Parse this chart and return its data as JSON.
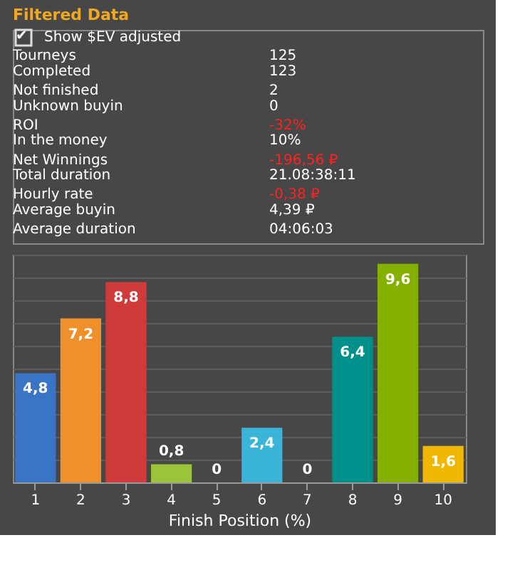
{
  "chart_data": [
    {
      "type": "other",
      "title": "Filtered Data",
      "annotations": [
        "✔",
        "Show $EV adjusted",
        "Tourneys",
        "125",
        "Completed",
        "123",
        "Not finished",
        "2",
        "Unknown buyin",
        "0",
        "ROI",
        "-32%",
        "In the money",
        "10%",
        "Net Winnings",
        "-196,56 ₽",
        "Total duration",
        "21.08:38:11",
        "Hourly rate",
        "-0,38 ₽",
        "Average buyin",
        "4,39 ₽",
        "Average duration",
        "04:06:03"
      ],
      "colors": [
        "#ffffff",
        "#ffffff",
        "#ffffff",
        "#ffffff",
        "#ffffff",
        "#ffffff",
        "#ffffff",
        "#ffffff",
        "#ffffff",
        "#ffffff",
        "#ffffff",
        "#ff2020",
        "#ffffff",
        "#ffffff",
        "#ffffff",
        "#ff2020",
        "#ffffff",
        "#ffffff",
        "#ffffff",
        "#ff2020",
        "#ffffff",
        "#ffffff",
        "#ffffff",
        "#ffffff"
      ]
    },
    {
      "type": "bar",
      "xlabel": "Finish Position (%)",
      "categories": [
        "1",
        "2",
        "3",
        "4",
        "5",
        "6",
        "7",
        "8",
        "9",
        "10"
      ],
      "values": [
        4.8,
        7.2,
        8.8,
        0.8,
        0,
        2.4,
        0,
        6.4,
        9.6,
        1.6
      ],
      "value_labels": [
        "4,8",
        "7,2",
        "8,8",
        "0,8",
        "0",
        "2,4",
        "0",
        "6,4",
        "9,6",
        "1,6"
      ],
      "colors": [
        "#3a74c4",
        "#f0902a",
        "#d03a3a",
        "#9cc43a",
        "#4aa8d8",
        "#3ab4d8",
        "#2a2a2a",
        "#00908c",
        "#86b000",
        "#f0b800"
      ],
      "ylim": [
        0,
        10
      ],
      "grid": "y",
      "tick_labels": "x"
    }
  ]
}
